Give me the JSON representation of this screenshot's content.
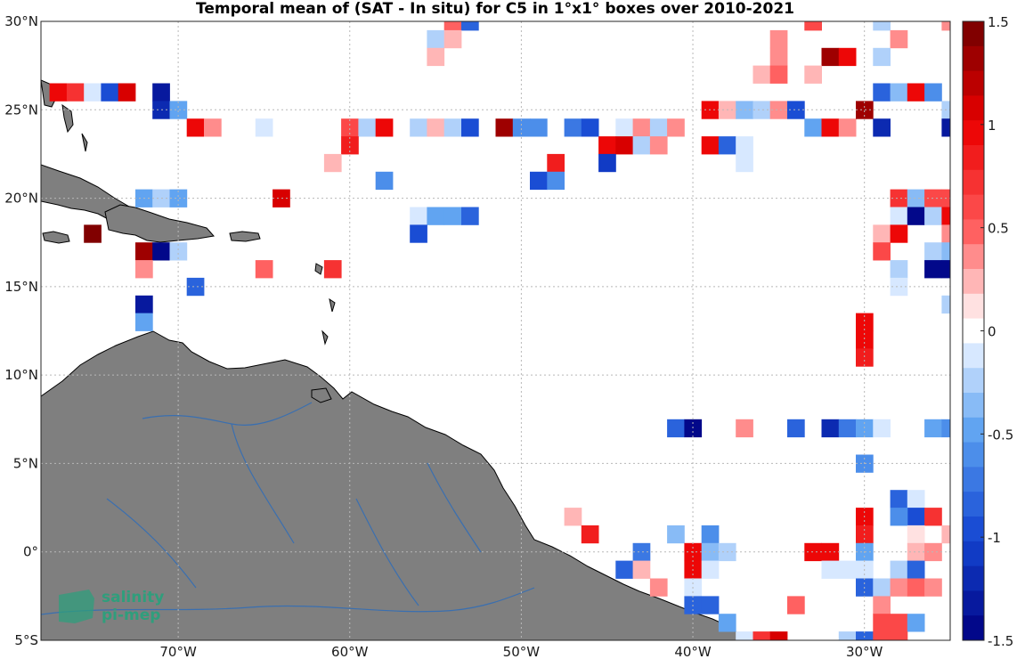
{
  "chart_data": {
    "type": "heatmap",
    "title": "Temporal mean of (SAT - In situ) for C5 in 1°x1° boxes over 2010-2021",
    "xlabel": "",
    "ylabel": "",
    "lon_range": [
      -78,
      -25
    ],
    "lat_range": [
      -5,
      30
    ],
    "grid": true,
    "x_ticks": [
      {
        "value": -70,
        "label": "70°W"
      },
      {
        "value": -60,
        "label": "60°W"
      },
      {
        "value": -50,
        "label": "50°W"
      },
      {
        "value": -40,
        "label": "40°W"
      },
      {
        "value": -30,
        "label": "30°W"
      }
    ],
    "y_ticks": [
      {
        "value": 30,
        "label": "30°N"
      },
      {
        "value": 25,
        "label": "25°N"
      },
      {
        "value": 20,
        "label": "20°N"
      },
      {
        "value": 15,
        "label": "15°N"
      },
      {
        "value": 10,
        "label": "10°N"
      },
      {
        "value": 5,
        "label": "5°N"
      },
      {
        "value": 0,
        "label": "0°"
      },
      {
        "value": -5,
        "label": "5°S"
      }
    ],
    "colorbar": {
      "range": [
        -1.5,
        1.5
      ],
      "ticks": [
        {
          "value": 1.5,
          "label": "1.5"
        },
        {
          "value": 1,
          "label": "1"
        },
        {
          "value": 0.5,
          "label": "0.5"
        },
        {
          "value": 0,
          "label": "0"
        },
        {
          "value": -0.5,
          "label": "-0.5"
        },
        {
          "value": -1,
          "label": "-1"
        },
        {
          "value": -1.5,
          "label": "-1.5"
        }
      ]
    },
    "cells": [
      [
        -77,
        26,
        1.0
      ],
      [
        -76,
        26,
        0.7
      ],
      [
        -75,
        26,
        -0.1
      ],
      [
        -74,
        26,
        -1.0
      ],
      [
        -73,
        26,
        1.1
      ],
      [
        -71,
        26,
        -1.3
      ],
      [
        -71,
        25,
        -1.2
      ],
      [
        -70,
        25,
        -0.5
      ],
      [
        -69,
        24,
        0.9
      ],
      [
        -68,
        24,
        0.3
      ],
      [
        -65,
        24,
        -0.1
      ],
      [
        -60,
        24,
        0.6
      ],
      [
        -59,
        24,
        -0.2
      ],
      [
        -58,
        24,
        1.0
      ],
      [
        -56,
        24,
        -0.3
      ],
      [
        -55,
        24,
        0.2
      ],
      [
        -54,
        24,
        -0.3
      ],
      [
        -53,
        24,
        -1.0
      ],
      [
        -51,
        24,
        1.3
      ],
      [
        -50,
        24,
        -0.6
      ],
      [
        -49,
        24,
        -0.6
      ],
      [
        -47,
        24,
        -0.7
      ],
      [
        -46,
        24,
        -1.0
      ],
      [
        -44,
        24,
        -0.1
      ],
      [
        -43,
        24,
        0.3
      ],
      [
        -42,
        24,
        -0.2
      ],
      [
        -41,
        24,
        0.3
      ],
      [
        -39,
        25,
        1.0
      ],
      [
        -38,
        25,
        0.2
      ],
      [
        -37,
        25,
        -0.4
      ],
      [
        -36,
        25,
        -0.3
      ],
      [
        -35,
        25,
        0.3
      ],
      [
        -34,
        25,
        -1.0
      ],
      [
        -33,
        24,
        -0.5
      ],
      [
        -32,
        24,
        1.0
      ],
      [
        -31,
        24,
        0.3
      ],
      [
        -30,
        25,
        1.3
      ],
      [
        -29,
        26,
        -0.9
      ],
      [
        -29,
        24,
        -1.2
      ],
      [
        -28,
        26,
        -0.4
      ],
      [
        -27,
        26,
        0.9
      ],
      [
        -26,
        26,
        -0.6
      ],
      [
        -25,
        25,
        -0.2
      ],
      [
        -25,
        24,
        -1.3
      ],
      [
        -60,
        23,
        0.8
      ],
      [
        -45,
        23,
        1.0
      ],
      [
        -44,
        23,
        1.1
      ],
      [
        -43,
        23,
        -0.2
      ],
      [
        -42,
        23,
        0.4
      ],
      [
        -39,
        23,
        0.9
      ],
      [
        -38,
        23,
        -0.9
      ],
      [
        -37,
        23,
        -0.1
      ],
      [
        -37,
        22,
        -0.1
      ],
      [
        -48,
        22,
        0.8
      ],
      [
        -45,
        22,
        -1.1
      ],
      [
        -61,
        22,
        0.2
      ],
      [
        -58,
        21,
        -0.6
      ],
      [
        -49,
        21,
        -1.0
      ],
      [
        -48,
        21,
        -0.6
      ],
      [
        -72,
        20,
        -0.5
      ],
      [
        -71,
        20,
        -0.3
      ],
      [
        -70,
        20,
        -0.5
      ],
      [
        -64,
        20,
        1.1
      ],
      [
        -56,
        19,
        -0.1
      ],
      [
        -55,
        19,
        -0.5
      ],
      [
        -54,
        19,
        -0.5
      ],
      [
        -53,
        19,
        -0.8
      ],
      [
        -56,
        18,
        -1.0
      ],
      [
        -75,
        18,
        1.5
      ],
      [
        -72,
        17,
        1.3
      ],
      [
        -71,
        17,
        -1.6
      ],
      [
        -70,
        17,
        -0.2
      ],
      [
        -72,
        16,
        0.3
      ],
      [
        -65,
        16,
        0.5
      ],
      [
        -61,
        16,
        0.7
      ],
      [
        -69,
        15,
        -0.8
      ],
      [
        -72,
        14,
        -1.3
      ],
      [
        -72,
        13,
        -0.5
      ],
      [
        -28,
        20,
        0.7
      ],
      [
        -27,
        20,
        -0.4
      ],
      [
        -26,
        20,
        0.6
      ],
      [
        -25,
        20,
        0.6
      ],
      [
        -28,
        19,
        -0.1
      ],
      [
        -27,
        19,
        -1.5
      ],
      [
        -26,
        19,
        -0.3
      ],
      [
        -25,
        19,
        0.9
      ],
      [
        -29,
        18,
        0.2
      ],
      [
        -28,
        18,
        0.9
      ],
      [
        -25,
        18,
        0.3
      ],
      [
        -29,
        17,
        0.6
      ],
      [
        -26,
        17,
        -0.2
      ],
      [
        -25,
        17,
        -0.4
      ],
      [
        -28,
        16,
        -0.3
      ],
      [
        -26,
        16,
        -1.5
      ],
      [
        -25,
        16,
        -1.5
      ],
      [
        -28,
        15,
        -0.1
      ],
      [
        -25,
        14,
        -0.2
      ],
      [
        -30,
        13,
        1.0
      ],
      [
        -30,
        12,
        1.0
      ],
      [
        -30,
        11,
        0.8
      ],
      [
        -41,
        7,
        -0.8
      ],
      [
        -40,
        7,
        -1.5
      ],
      [
        -37,
        7,
        0.3
      ],
      [
        -34,
        7,
        -0.8
      ],
      [
        -32,
        7,
        -1.2
      ],
      [
        -31,
        7,
        -0.7
      ],
      [
        -30,
        7,
        -0.5
      ],
      [
        -29,
        7,
        -0.1
      ],
      [
        -26,
        7,
        -0.5
      ],
      [
        -25,
        7,
        -0.6
      ],
      [
        -30,
        5,
        -0.6
      ],
      [
        -28,
        3,
        -0.8
      ],
      [
        -27,
        3,
        -0.1
      ],
      [
        -27,
        2,
        -1.0
      ],
      [
        -28,
        2,
        -0.6
      ],
      [
        -26,
        2,
        0.7
      ],
      [
        -30,
        2,
        1.0
      ],
      [
        -30,
        1,
        0.8
      ],
      [
        -27,
        1,
        0.1
      ],
      [
        -25,
        1,
        0.2
      ],
      [
        -47,
        2,
        0.2
      ],
      [
        -46,
        1,
        0.8
      ],
      [
        -41,
        1,
        -0.4
      ],
      [
        -39,
        1,
        -0.6
      ],
      [
        -43,
        0,
        -0.7
      ],
      [
        -40,
        0,
        1.0
      ],
      [
        -39,
        0,
        -0.4
      ],
      [
        -38,
        0,
        -0.3
      ],
      [
        -33,
        0,
        1.0
      ],
      [
        -32,
        0,
        1.0
      ],
      [
        -30,
        0,
        -0.5
      ],
      [
        -27,
        0,
        0.2
      ],
      [
        -26,
        0,
        0.4
      ],
      [
        -44,
        -1,
        -0.9
      ],
      [
        -43,
        -1,
        0.2
      ],
      [
        -40,
        -1,
        1.0
      ],
      [
        -39,
        -1,
        -0.1
      ],
      [
        -32,
        -1,
        -0.1
      ],
      [
        -31,
        -1,
        -0.1
      ],
      [
        -30,
        -1,
        -0.1
      ],
      [
        -28,
        -1,
        -0.3
      ],
      [
        -27,
        -1,
        -0.8
      ],
      [
        -42,
        -2,
        0.4
      ],
      [
        -40,
        -2,
        -0.1
      ],
      [
        -30,
        -2,
        -0.8
      ],
      [
        -29,
        -2,
        -0.3
      ],
      [
        -28,
        -2,
        0.3
      ],
      [
        -27,
        -2,
        0.5
      ],
      [
        -26,
        -2,
        0.4
      ],
      [
        -40,
        -3,
        -0.9
      ],
      [
        -39,
        -3,
        -0.9
      ],
      [
        -34,
        -3,
        0.5
      ],
      [
        -29,
        -3,
        0.3
      ],
      [
        -38,
        -4,
        -0.5
      ],
      [
        -29,
        -4,
        0.6
      ],
      [
        -28,
        -4,
        0.6
      ],
      [
        -27,
        -4,
        -0.5
      ],
      [
        -37,
        -5,
        -0.1
      ],
      [
        -36,
        -5,
        0.7
      ],
      [
        -35,
        -5,
        1.1
      ],
      [
        -31,
        -5,
        -0.3
      ],
      [
        -30,
        -5,
        -0.9
      ],
      [
        -29,
        -5,
        0.6
      ],
      [
        -28,
        -5,
        0.6
      ],
      [
        -54,
        30,
        0.5
      ],
      [
        -53,
        30,
        -0.9
      ],
      [
        -33,
        30,
        0.6
      ],
      [
        -29,
        30,
        -0.3
      ],
      [
        -25,
        30,
        0.4
      ],
      [
        -55,
        29,
        -0.2
      ],
      [
        -54,
        29,
        0.2
      ],
      [
        -35,
        29,
        0.3
      ],
      [
        -28,
        29,
        0.4
      ],
      [
        -55,
        28,
        0.2
      ],
      [
        -35,
        28,
        0.3
      ],
      [
        -32,
        28,
        1.3
      ],
      [
        -31,
        28,
        1.0
      ],
      [
        -29,
        28,
        -0.3
      ],
      [
        -36,
        27,
        0.2
      ],
      [
        -35,
        27,
        0.5
      ],
      [
        -33,
        27,
        0.2
      ]
    ]
  },
  "logo": {
    "line1": "salinity",
    "line2": "pi-mep"
  }
}
